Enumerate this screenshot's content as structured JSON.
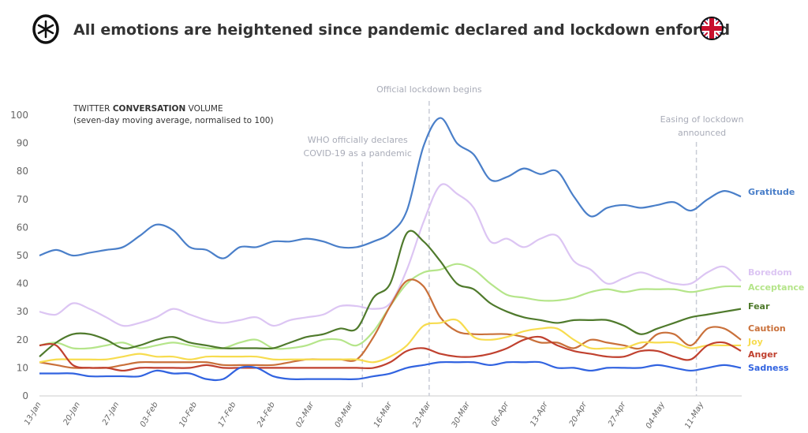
{
  "header": {
    "title": "All emotions are heightened since pandemic declared and lockdown enforced",
    "logo_icon": "asterisk-circle-logo",
    "flag_icon": "uk-flag-icon"
  },
  "chart_data": {
    "type": "line",
    "title": "All emotions are heightened since pandemic declared and lockdown enforced",
    "note_prefix": "TWITTER ",
    "note_bold": "CONVERSATION",
    "note_suffix": " VOLUME",
    "note_sub": "(seven-day moving average, normalised to 100)",
    "ylim": [
      0,
      100
    ],
    "yticks": [
      0,
      10,
      20,
      30,
      40,
      50,
      60,
      70,
      80,
      90,
      100
    ],
    "xlim": [
      "2020-01-13",
      "2020-05-18"
    ],
    "xtick_dates": [
      "2020-01-13",
      "2020-01-20",
      "2020-01-27",
      "2020-02-03",
      "2020-02-10",
      "2020-02-17",
      "2020-02-24",
      "2020-03-02",
      "2020-03-09",
      "2020-03-16",
      "2020-03-23",
      "2020-03-30",
      "2020-04-06",
      "2020-04-13",
      "2020-04-20",
      "2020-04-27",
      "2020-05-04",
      "2020-05-11"
    ],
    "xtick_labels": [
      "13-Jan",
      "20-Jan",
      "27-Jan",
      "03-Feb",
      "10-Feb",
      "17-Feb",
      "24-Feb",
      "02-Mar",
      "09-Mar",
      "16-Mar",
      "23-Mar",
      "30-Mar",
      "06-Apr",
      "13-Apr",
      "20-Apr",
      "27-Apr",
      "04-May",
      "11-May"
    ],
    "grid": false,
    "legend": "right end labels",
    "annotations": [
      {
        "date": "2020-03-11",
        "lines": [
          "WHO officially declares",
          "COVID-19 as a pandemic"
        ]
      },
      {
        "date": "2020-03-23",
        "lines": [
          "Official lockdown begins"
        ]
      },
      {
        "date": "2020-05-10",
        "lines": [
          "Easing of lockdown",
          "announced"
        ]
      }
    ],
    "x": [
      "2020-01-13",
      "2020-01-16",
      "2020-01-19",
      "2020-01-22",
      "2020-01-25",
      "2020-01-28",
      "2020-01-31",
      "2020-02-03",
      "2020-02-06",
      "2020-02-09",
      "2020-02-12",
      "2020-02-15",
      "2020-02-18",
      "2020-02-21",
      "2020-02-24",
      "2020-02-27",
      "2020-03-01",
      "2020-03-04",
      "2020-03-07",
      "2020-03-10",
      "2020-03-13",
      "2020-03-16",
      "2020-03-19",
      "2020-03-22",
      "2020-03-25",
      "2020-03-28",
      "2020-03-31",
      "2020-04-03",
      "2020-04-06",
      "2020-04-09",
      "2020-04-12",
      "2020-04-15",
      "2020-04-18",
      "2020-04-21",
      "2020-04-24",
      "2020-04-27",
      "2020-04-30",
      "2020-05-03",
      "2020-05-06",
      "2020-05-09",
      "2020-05-12",
      "2020-05-15",
      "2020-05-18"
    ],
    "series": [
      {
        "name": "Gratitude",
        "color": "#4a7fc9",
        "values": [
          50,
          52,
          50,
          51,
          52,
          53,
          57,
          61,
          59,
          53,
          52,
          49,
          53,
          53,
          55,
          55,
          56,
          55,
          53,
          53,
          55,
          58,
          66,
          89,
          99,
          90,
          86,
          77,
          78,
          81,
          79,
          80,
          71,
          64,
          67,
          68,
          67,
          68,
          69,
          66,
          70,
          73,
          71
        ]
      },
      {
        "name": "Boredom",
        "color": "#dcc5f3",
        "values": [
          30,
          29,
          33,
          31,
          28,
          25,
          26,
          28,
          31,
          29,
          27,
          26,
          27,
          28,
          25,
          27,
          28,
          29,
          32,
          32,
          31,
          33,
          45,
          62,
          75,
          72,
          67,
          55,
          56,
          53,
          56,
          57,
          48,
          45,
          40,
          42,
          44,
          42,
          40,
          40,
          44,
          46,
          41
        ]
      },
      {
        "name": "Acceptance",
        "color": "#b5e58a",
        "values": [
          18,
          19,
          17,
          17,
          18,
          19,
          17,
          18,
          19,
          18,
          17,
          17,
          19,
          20,
          17,
          17,
          18,
          20,
          20,
          18,
          23,
          32,
          40,
          44,
          45,
          47,
          45,
          40,
          36,
          35,
          34,
          34,
          35,
          37,
          38,
          37,
          38,
          38,
          38,
          37,
          38,
          39,
          39
        ]
      },
      {
        "name": "Fear",
        "color": "#4f7a2c",
        "values": [
          14,
          19,
          22,
          22,
          20,
          17,
          18,
          20,
          21,
          19,
          18,
          17,
          17,
          17,
          17,
          19,
          21,
          22,
          24,
          24,
          35,
          40,
          58,
          55,
          48,
          40,
          38,
          33,
          30,
          28,
          27,
          26,
          27,
          27,
          27,
          25,
          22,
          24,
          26,
          28,
          29,
          30,
          31
        ]
      },
      {
        "name": "Caution",
        "color": "#c9703a",
        "values": [
          12,
          11,
          10,
          10,
          10,
          11,
          12,
          12,
          12,
          12,
          12,
          11,
          11,
          11,
          11,
          12,
          13,
          13,
          13,
          13,
          21,
          32,
          41,
          39,
          28,
          23,
          22,
          22,
          22,
          21,
          19,
          19,
          17,
          20,
          19,
          18,
          17,
          22,
          22,
          18,
          24,
          24,
          20
        ]
      },
      {
        "name": "Joy",
        "color": "#f7dc4f",
        "values": [
          12,
          13,
          13,
          13,
          13,
          14,
          15,
          14,
          14,
          13,
          14,
          14,
          14,
          14,
          13,
          13,
          13,
          13,
          13,
          13,
          12,
          14,
          18,
          25,
          26,
          27,
          21,
          20,
          21,
          23,
          24,
          24,
          20,
          17,
          17,
          17,
          19,
          19,
          19,
          17,
          18,
          18,
          18
        ]
      },
      {
        "name": "Anger",
        "color": "#c0412f",
        "values": [
          18,
          18,
          11,
          10,
          10,
          9,
          10,
          10,
          10,
          10,
          11,
          10,
          10,
          10,
          10,
          10,
          10,
          10,
          10,
          10,
          10,
          12,
          16,
          17,
          15,
          14,
          14,
          15,
          17,
          20,
          21,
          18,
          16,
          15,
          14,
          14,
          16,
          16,
          14,
          13,
          18,
          19,
          16
        ]
      },
      {
        "name": "Sadness",
        "color": "#3163e0",
        "values": [
          8,
          8,
          8,
          7,
          7,
          7,
          7,
          9,
          8,
          8,
          6,
          6,
          10,
          10,
          7,
          6,
          6,
          6,
          6,
          6,
          7,
          8,
          10,
          11,
          12,
          12,
          12,
          11,
          12,
          12,
          12,
          10,
          10,
          9,
          10,
          10,
          10,
          11,
          10,
          9,
          10,
          11,
          10
        ]
      }
    ]
  }
}
